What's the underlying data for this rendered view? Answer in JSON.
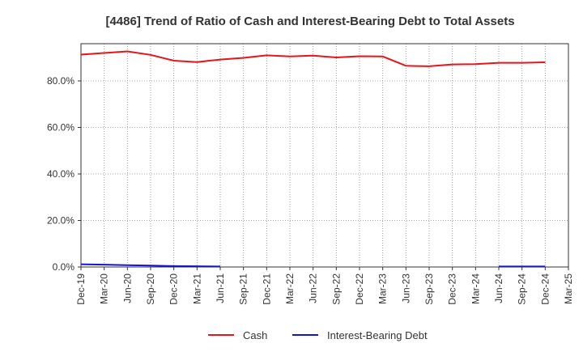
{
  "chart_data": {
    "type": "line",
    "title": "[4486]  Trend of Ratio of Cash and Interest-Bearing Debt to Total Assets",
    "xlabel": "",
    "ylabel": "",
    "ylim": [
      0,
      96
    ],
    "y_ticks": [
      0,
      20,
      40,
      60,
      80
    ],
    "y_tick_labels": [
      "0.0%",
      "20.0%",
      "40.0%",
      "60.0%",
      "80.0%"
    ],
    "x_ticks": [
      "Dec-19",
      "Mar-20",
      "Jun-20",
      "Sep-20",
      "Dec-20",
      "Mar-21",
      "Jun-21",
      "Sep-21",
      "Dec-21",
      "Mar-22",
      "Jun-22",
      "Sep-22",
      "Dec-22",
      "Mar-23",
      "Jun-23",
      "Sep-23",
      "Dec-23",
      "Mar-24",
      "Jun-24",
      "Sep-24",
      "Dec-24",
      "Mar-25"
    ],
    "grid": true,
    "legend_position": "bottom",
    "series": [
      {
        "name": "Cash",
        "color": "#e8141b",
        "x": [
          "Dec-19",
          "Mar-20",
          "Jun-20",
          "Sep-20",
          "Dec-20",
          "Mar-21",
          "Jun-21",
          "Sep-21",
          "Dec-21",
          "Mar-22",
          "Jun-22",
          "Sep-22",
          "Dec-22",
          "Mar-23",
          "Jun-23",
          "Sep-23",
          "Dec-23",
          "Mar-24",
          "Jun-24",
          "Sep-24",
          "Dec-24"
        ],
        "values": [
          91.3,
          92.0,
          92.7,
          91.2,
          88.7,
          88.1,
          89.2,
          89.9,
          91.0,
          90.5,
          90.9,
          90.1,
          90.6,
          90.5,
          86.5,
          86.3,
          87.1,
          87.2,
          87.8,
          87.8,
          88.0
        ]
      },
      {
        "name": "Interest-Bearing Debt",
        "color": "#1414d2",
        "x": [
          "Dec-19",
          "Mar-20",
          "Jun-20",
          "Sep-20",
          "Dec-20",
          "Mar-21",
          "Jun-21",
          "Sep-21",
          "Dec-21",
          "Mar-22",
          "Jun-22",
          "Sep-22",
          "Dec-22",
          "Mar-23",
          "Jun-23",
          "Sep-23",
          "Dec-23",
          "Mar-24",
          "Jun-24",
          "Sep-24",
          "Dec-24"
        ],
        "values": [
          1.2,
          1.0,
          0.8,
          0.6,
          0.4,
          0.3,
          0.2,
          null,
          null,
          null,
          null,
          null,
          null,
          null,
          null,
          null,
          null,
          null,
          0.2,
          0.2,
          0.2
        ]
      }
    ]
  }
}
